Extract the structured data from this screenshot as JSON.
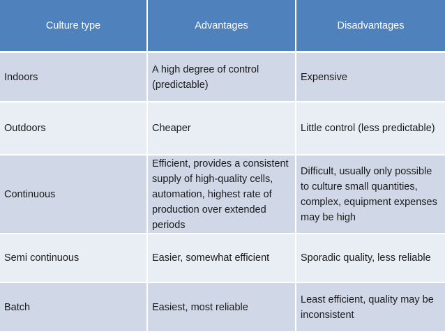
{
  "table": {
    "headers": [
      "Culture type",
      "Advantages",
      "Disadvantages"
    ],
    "rows": [
      [
        "Indoors",
        "A high degree of control (predictable)",
        "Expensive"
      ],
      [
        "Outdoors",
        "Cheaper",
        "Little control (less predictable)"
      ],
      [
        "Continuous",
        "Efficient, provides a consistent supply of high-quality cells, automation, highest rate of production over extended periods",
        "Difficult, usually only possible to culture small quantities, complex, equipment expenses may be high"
      ],
      [
        "Semi continuous",
        "Easier, somewhat efficient",
        "Sporadic quality, less reliable"
      ],
      [
        "Batch",
        "Easiest, most reliable",
        "Least efficient, quality may be inconsistent"
      ]
    ]
  },
  "colors": {
    "header_bg": "#4f81bd",
    "row_odd_bg": "#d0d8e8",
    "row_even_bg": "#e9edf4"
  }
}
